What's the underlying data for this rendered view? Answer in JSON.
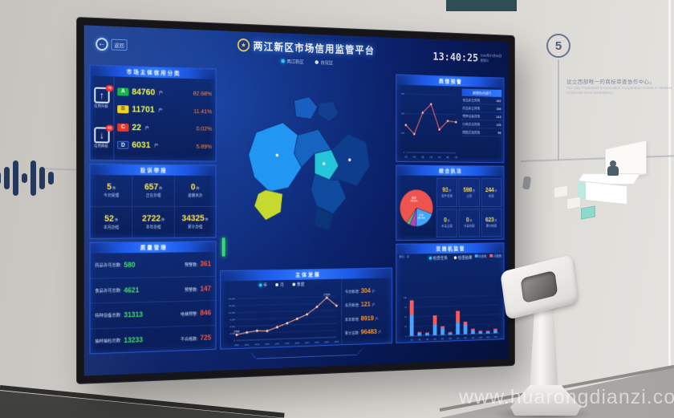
{
  "scene": {
    "milestone_number": "5",
    "wall_text_cn": "设立西部唯一的商标审查协作中心。",
    "wall_text_en": "The only Trademark Examination Cooperation Center in Western China has been established.",
    "watermark": "www.huarongdianzi.com"
  },
  "colors": {
    "accent_blue": "#2f7bff",
    "grade_a": "#18b34a",
    "grade_b": "#f2d024",
    "grade_c": "#e8362e",
    "grade_d": "#0e2f73",
    "good_green": "#43e06a",
    "warn_red": "#ff5346",
    "number_yellow": "#ffe94d",
    "percent_orange": "#ff8a3c"
  },
  "dashboard": {
    "back_label": "返回",
    "emblem_icon": "★",
    "title": "两江新区市场信用监管平台",
    "clock": "13:40:25",
    "date_line1": "2020年07月08日",
    "date_line2": "星期三",
    "region_tabs": [
      {
        "label": "两江新区"
      },
      {
        "label": "自贸区"
      }
    ],
    "credit_panel": {
      "title": "市场主体信用分类",
      "up_badge": "76",
      "up_arrow": "↑",
      "up_label": "信用升级",
      "down_badge": "63",
      "down_arrow": "↓",
      "down_label": "信用降级",
      "rows": [
        {
          "grade": "A",
          "count": "84760",
          "unit": "户",
          "percent": "82.68%"
        },
        {
          "grade": "B",
          "count": "11701",
          "unit": "户",
          "percent": "11.41%"
        },
        {
          "grade": "C",
          "count": "22",
          "unit": "户",
          "percent": "0.02%"
        },
        {
          "grade": "D",
          "count": "6031",
          "unit": "户",
          "percent": "5.89%"
        }
      ]
    },
    "complaint_panel": {
      "title": "投诉举报",
      "cells": [
        {
          "value": "5",
          "unit": "件",
          "label": "今日受理"
        },
        {
          "value": "657",
          "unit": "件",
          "label": "正在办理"
        },
        {
          "value": "0",
          "unit": "件",
          "label": "逾期未办"
        },
        {
          "value": "52",
          "unit": "件",
          "label": "本月办结"
        },
        {
          "value": "2722",
          "unit": "件",
          "label": "本年办结"
        },
        {
          "value": "34325",
          "unit": "件",
          "label": "累计办结"
        }
      ]
    },
    "quality_panel": {
      "title": "质量管理",
      "rows": [
        {
          "label": "药品许可总数:",
          "value": "580",
          "label2": "预警数:",
          "value2": "361"
        },
        {
          "label": "食品许可总数:",
          "value": "4621",
          "label2": "预警数:",
          "value2": "147"
        },
        {
          "label": "特种设备总数:",
          "value": "31313",
          "label2": "电梯预警:",
          "value2": "846"
        },
        {
          "label": "抽样抽检总数:",
          "value": "13233",
          "label2": "不合格数:",
          "value2": "725"
        }
      ]
    },
    "development_panel": {
      "title": "主体发展",
      "modes": [
        {
          "label": "年"
        },
        {
          "label": "月"
        },
        {
          "label": "季度"
        }
      ],
      "stats": [
        {
          "label": "今日新增:",
          "value": "304",
          "unit": "户"
        },
        {
          "label": "本月新增:",
          "value": "121",
          "unit": "户"
        },
        {
          "label": "本年新增:",
          "value": "8919",
          "unit": "户"
        },
        {
          "label": "累计总数:",
          "value": "96483",
          "unit": "户"
        }
      ]
    },
    "sentiment_panel": {
      "title": "舆情预警",
      "list_header": "舆情热点排行",
      "list": [
        {
          "label": "食品安全舆情",
          "value": "182"
        },
        {
          "label": "药品安全舆情",
          "value": "165"
        },
        {
          "label": "特种设备舆情",
          "value": "143"
        },
        {
          "label": "价格违法舆情",
          "value": "126"
        },
        {
          "label": "网络交易舆情",
          "value": "98"
        }
      ]
    },
    "enforcement_panel": {
      "title": "综合执法",
      "tiles": [
        {
          "value": "93",
          "unit": "件",
          "label": "案件受理"
        },
        {
          "value": "598",
          "unit": "件",
          "label": "立案"
        },
        {
          "value": "244",
          "unit": "件",
          "label": "结案"
        },
        {
          "value": "0",
          "unit": "件",
          "label": "本月立案"
        },
        {
          "value": "0",
          "unit": "件",
          "label": "本月结案"
        },
        {
          "value": "623",
          "unit": "件",
          "label": "累计结案"
        }
      ]
    },
    "random_panel": {
      "title": "双随机监管",
      "note": "单位：次",
      "toggles": [
        {
          "label": "检查任务"
        },
        {
          "label": "检查结果"
        }
      ]
    }
  },
  "chart_data": [
    {
      "id": "development",
      "type": "line",
      "title": "主体发展",
      "x": [
        "2010",
        "2011",
        "2012",
        "2013",
        "2014",
        "2015",
        "2016",
        "2017",
        "2018",
        "2019",
        "2020"
      ],
      "values": [
        2458,
        3300,
        3900,
        3700,
        5200,
        6800,
        8600,
        10400,
        13600,
        17534,
        13900
      ],
      "ylim": [
        0,
        18000
      ],
      "yticks": [
        0,
        3000,
        6000,
        9000,
        12000,
        15000,
        18000
      ],
      "point_labels": {
        "0": "2458",
        "9": "17534"
      },
      "color": "#ffab91",
      "legend_position": "none",
      "grid": true
    },
    {
      "id": "sentiment",
      "type": "line",
      "title": "舆情预警",
      "x": [
        "1月",
        "2月",
        "3月",
        "4月",
        "5月",
        "6月",
        "7月"
      ],
      "values": [
        140,
        95,
        205,
        250,
        120,
        165,
        160
      ],
      "ylim": [
        0,
        300
      ],
      "yticks": [
        0,
        100,
        200,
        300
      ],
      "color": "#ff6e6e",
      "grid": true
    },
    {
      "id": "enforcement",
      "type": "pie",
      "title": "综合执法占比",
      "slices": [
        {
          "name": "结案",
          "value": 70.2,
          "color": "#ef5350"
        },
        {
          "name": "在办",
          "value": 20.1,
          "color": "#42a5f5"
        },
        {
          "name": "中止",
          "value": 6.4,
          "color": "#ab47bc"
        },
        {
          "name": "其他",
          "value": 3.3,
          "color": "#66bb6a"
        }
      ]
    },
    {
      "id": "random",
      "type": "bar",
      "stacked": true,
      "title": "双随机监管",
      "categories": [
        "1月",
        "2月",
        "3月",
        "4月",
        "5月",
        "6月",
        "7月",
        "8月",
        "9月",
        "10月",
        "11月",
        "12月"
      ],
      "series": [
        {
          "name": "检查数",
          "color": "#4aa3ff",
          "values": [
            55,
            8,
            6,
            28,
            18,
            5,
            32,
            25,
            10,
            6,
            5,
            8
          ]
        },
        {
          "name": "问题数",
          "color": "#ff5a5a",
          "values": [
            38,
            2,
            2,
            24,
            5,
            2,
            30,
            8,
            4,
            2,
            2,
            4
          ]
        }
      ],
      "ylim": [
        0,
        100
      ],
      "yticks": [
        0,
        25,
        50,
        75,
        100
      ],
      "legend_position": "top-right"
    }
  ]
}
